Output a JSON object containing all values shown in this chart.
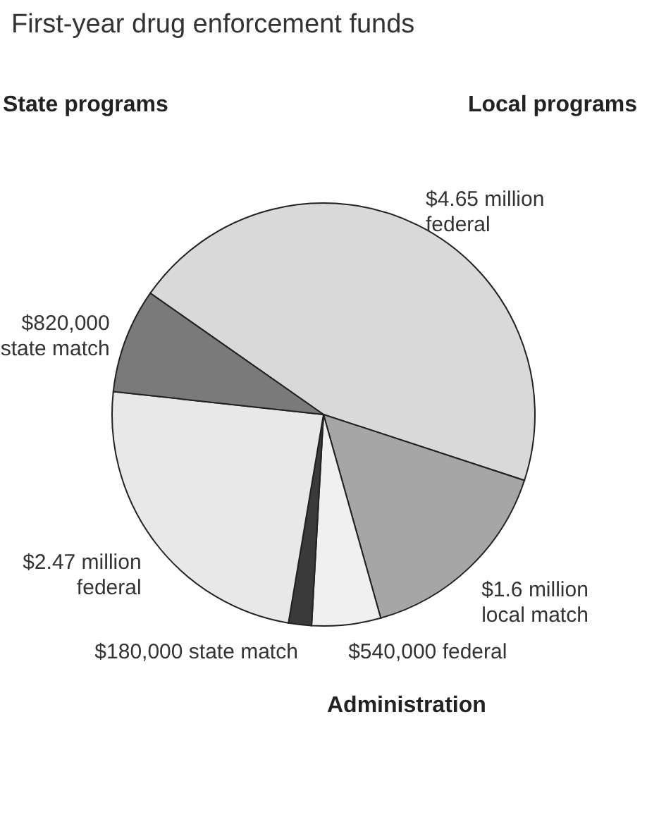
{
  "chart_data": {
    "type": "pie",
    "title": "First-year drug enforcement funds",
    "categories": [
      null,
      null,
      null,
      null,
      null,
      null
    ],
    "values": [
      4650000,
      1600000,
      540000,
      180000,
      2470000,
      820000
    ],
    "value_labels": [
      "$4.65 million federal",
      "$1.6 million local match",
      "$540,000 federal",
      "$180,000 state match",
      "$2.47 million federal",
      "$820,000 state match"
    ],
    "colors": [
      "#d9d9d9",
      "#a6a6a6",
      "#f0f0f0",
      "#3a3a3a",
      "#e8e8e8",
      "#7a7a7a"
    ],
    "annotations": [
      "State programs",
      "Local programs",
      "Administration"
    ]
  }
}
